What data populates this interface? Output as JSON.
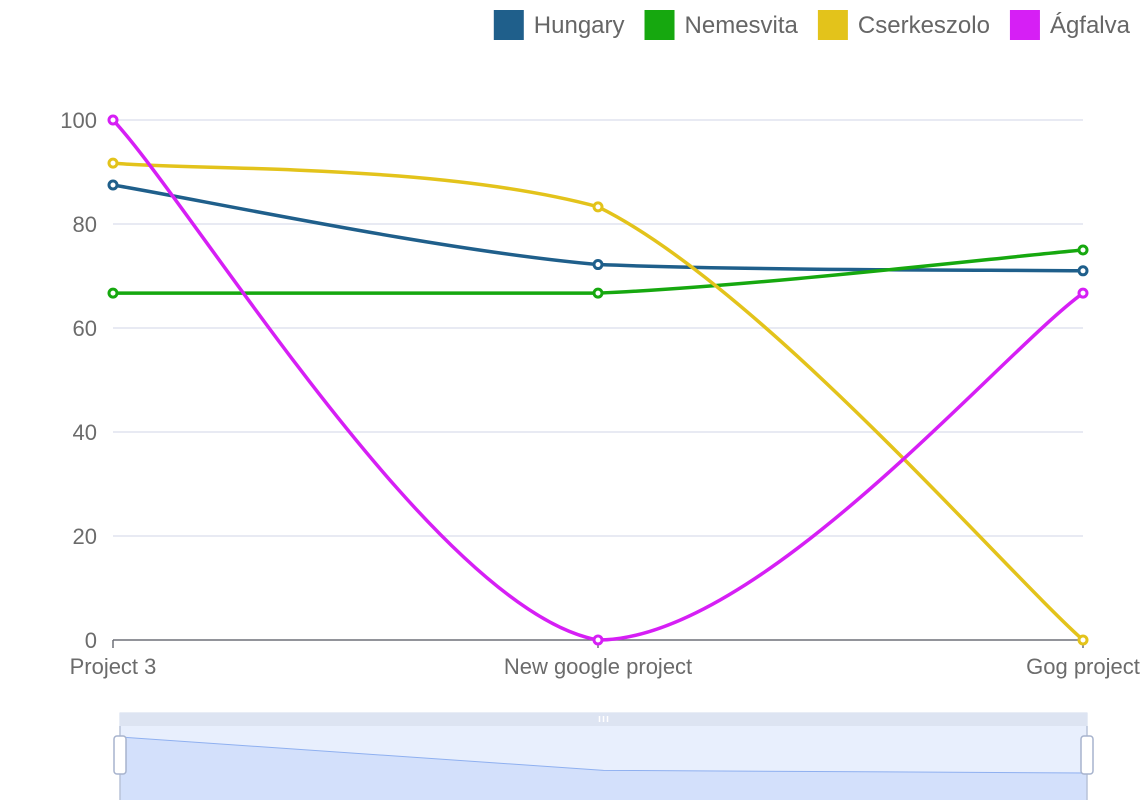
{
  "chart_data": {
    "type": "line",
    "title": "",
    "xlabel": "",
    "ylabel": "",
    "categories": [
      "Project 3",
      "New google project",
      "Gog project"
    ],
    "ylim": [
      0,
      100
    ],
    "y_ticks": [
      "0",
      "20",
      "40",
      "60",
      "80",
      "100"
    ],
    "grid": true,
    "legend_position": "top-right",
    "smooth": true,
    "series": [
      {
        "name": "Hungary",
        "color": "#1f5f8b",
        "values": [
          87.5,
          72.2,
          71.0
        ]
      },
      {
        "name": "Nemesvita",
        "color": "#16a80f",
        "values": [
          66.7,
          66.7,
          75.0
        ]
      },
      {
        "name": "Cserkeszolo",
        "color": "#e3c31b",
        "values": [
          91.7,
          83.3,
          0
        ]
      },
      {
        "name": "Ágfalva",
        "color": "#d61ff5",
        "values": [
          100,
          0,
          66.7
        ]
      }
    ],
    "data_zoom": {
      "fill_color": "#d3e0fb",
      "line_color": "#8fb0f0",
      "preview_values": [
        87.5,
        72.2,
        71.0
      ]
    }
  }
}
